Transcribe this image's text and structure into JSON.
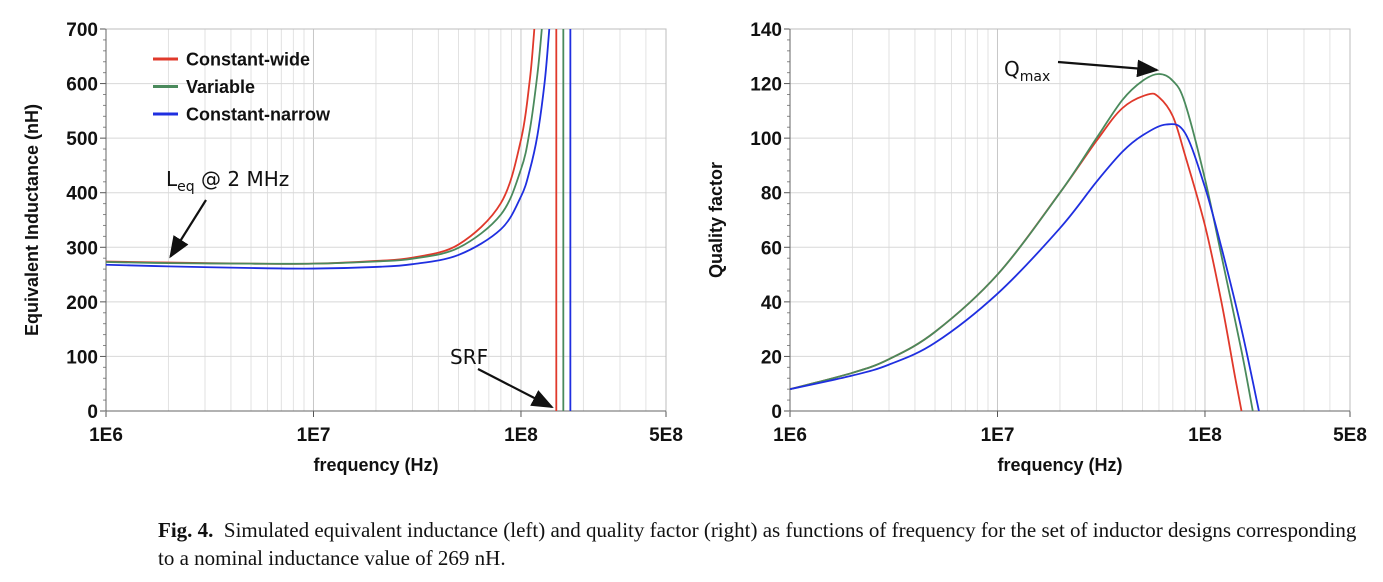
{
  "chart_data": [
    {
      "type": "line",
      "xscale": "log",
      "xlim": [
        1000000,
        500000000
      ],
      "ylim": [
        0,
        700
      ],
      "xticks": [
        {
          "v": 1000000,
          "label": "1E6"
        },
        {
          "v": 10000000,
          "label": "1E7"
        },
        {
          "v": 100000000,
          "label": "1E8"
        },
        {
          "v": 500000000,
          "label": "5E8"
        }
      ],
      "yticks": [
        0,
        100,
        200,
        300,
        400,
        500,
        600,
        700
      ],
      "xlabel": "frequency (Hz)",
      "ylabel": "Equivalent Inductance (nH)",
      "grid": true,
      "legend_placement": "top-left",
      "series": [
        {
          "name": "Constant-wide",
          "color": "#e0392b",
          "x": [
            1000000.0,
            2000000.0,
            5000000.0,
            10000000.0,
            20000000.0,
            30000000.0,
            50000000.0,
            80000000.0,
            100000000.0,
            110000000.0,
            115000000.0,
            118000000.0
          ],
          "y": [
            274,
            272,
            270,
            270,
            275,
            281,
            305,
            381,
            497,
            603,
            682,
            742
          ]
        },
        {
          "name": "Variable",
          "color": "#4a8a5c",
          "x": [
            1000000.0,
            2000000.0,
            5000000.0,
            10000000.0,
            20000000.0,
            30000000.0,
            50000000.0,
            80000000.0,
            100000000.0,
            110000000.0,
            120000000.0,
            126000000.0,
            128000000.0
          ],
          "y": [
            273,
            271,
            270,
            270,
            274,
            279,
            299,
            360,
            443,
            512,
            617,
            700,
            740
          ]
        },
        {
          "name": "Constant-narrow",
          "color": "#1f2fe0",
          "x": [
            1000000.0,
            2000000.0,
            5000000.0,
            10000000.0,
            20000000.0,
            30000000.0,
            50000000.0,
            80000000.0,
            100000000.0,
            110000000.0,
            120000000.0,
            130000000.0,
            136000000.0,
            138000000.0
          ],
          "y": [
            268,
            265,
            262,
            261,
            264,
            269,
            286,
            333,
            393,
            440,
            505,
            602,
            686,
            720
          ]
        }
      ],
      "srf": [
        {
          "series": "Constant-wide",
          "x": 148000000.0
        },
        {
          "series": "Variable",
          "x": 160000000.0
        },
        {
          "series": "Constant-narrow",
          "x": 173000000.0
        }
      ],
      "annotations": [
        {
          "text": "L",
          "sub": "eq",
          "after": " @ 2 MHz",
          "target": [
            2000000.0,
            272
          ]
        },
        {
          "text": "SRF",
          "target": [
            144000000.0,
            0
          ]
        }
      ]
    },
    {
      "type": "line",
      "xscale": "log",
      "xlim": [
        1000000,
        500000000
      ],
      "ylim": [
        0,
        140
      ],
      "xticks": [
        {
          "v": 1000000,
          "label": "1E6"
        },
        {
          "v": 10000000,
          "label": "1E7"
        },
        {
          "v": 100000000,
          "label": "1E8"
        },
        {
          "v": 500000000,
          "label": "5E8"
        }
      ],
      "yticks": [
        0,
        20,
        40,
        60,
        80,
        100,
        120,
        140
      ],
      "xlabel": "frequency (Hz)",
      "ylabel": "Quality factor",
      "grid": true,
      "series": [
        {
          "name": "Constant-wide",
          "color": "#e0392b",
          "x": [
            1000000.0,
            2000000.0,
            3000000.0,
            5000000.0,
            10000000.0,
            20000000.0,
            30000000.0,
            40000000.0,
            53000000.0,
            60000000.0,
            70000000.0,
            80000000.0,
            100000000.0,
            120000000.0,
            140000000.0,
            150000000.0
          ],
          "y": [
            8,
            14,
            19,
            29,
            50,
            80,
            99,
            111,
            116,
            115,
            108,
            94,
            68,
            40,
            12,
            0
          ]
        },
        {
          "name": "Variable",
          "color": "#4a8a5c",
          "x": [
            1000000.0,
            2000000.0,
            3000000.0,
            5000000.0,
            10000000.0,
            20000000.0,
            30000000.0,
            40000000.0,
            50000000.0,
            60000000.0,
            70000000.0,
            80000000.0,
            100000000.0,
            120000000.0,
            150000000.0,
            170000000.0
          ],
          "y": [
            8,
            14,
            19,
            29,
            50,
            80,
            100,
            114,
            121,
            123.5,
            121,
            113,
            85,
            57,
            22,
            0
          ]
        },
        {
          "name": "Constant-narrow",
          "color": "#1f2fe0",
          "x": [
            1000000.0,
            2000000.0,
            3000000.0,
            5000000.0,
            10000000.0,
            20000000.0,
            30000000.0,
            40000000.0,
            50000000.0,
            65000000.0,
            80000000.0,
            100000000.0,
            120000000.0,
            150000000.0,
            182000000.0
          ],
          "y": [
            8,
            13,
            17,
            25,
            43,
            67,
            84,
            95,
            101,
            105,
            102,
            82,
            60,
            30,
            0
          ]
        }
      ],
      "annotations": [
        {
          "text": "Q",
          "sub": "max",
          "target": [
            60000000.0,
            123.5
          ]
        }
      ]
    }
  ],
  "caption": {
    "label": "Fig. 4.",
    "text": "Simulated equivalent inductance (left) and quality factor (right) as functions of frequency for the set of inductor designs corresponding to a nominal inductance value of 269 nH."
  }
}
